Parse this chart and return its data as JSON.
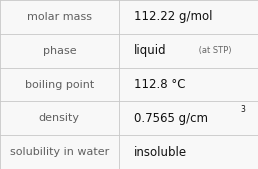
{
  "rows": [
    {
      "label": "molar mass",
      "value": "112.22 g/mol",
      "type": "plain"
    },
    {
      "label": "phase",
      "value": "liquid",
      "type": "phase",
      "suffix": " (at STP)"
    },
    {
      "label": "boiling point",
      "value": "112.8 °C",
      "type": "plain"
    },
    {
      "label": "density",
      "value": "0.7565 g/cm",
      "type": "super",
      "superscript": "3"
    },
    {
      "label": "solubility in water",
      "value": "insoluble",
      "type": "plain"
    }
  ],
  "background_color": "#f8f8f8",
  "border_color": "#c8c8c8",
  "label_color": "#606060",
  "value_color": "#111111",
  "suffix_color": "#666666",
  "label_fontsize": 8.0,
  "value_fontsize": 8.5,
  "suffix_fontsize": 6.0,
  "super_fontsize": 5.5,
  "col_split": 0.46,
  "figwidth": 2.58,
  "figheight": 1.69,
  "dpi": 100
}
